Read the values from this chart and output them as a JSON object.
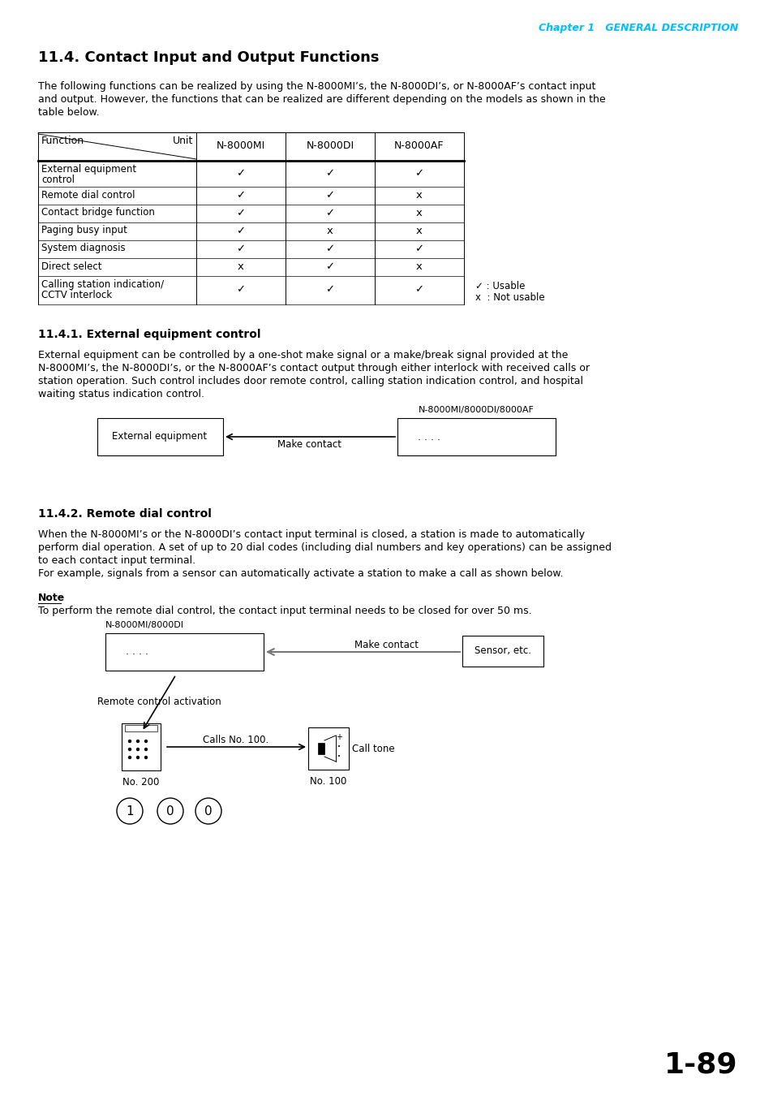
{
  "page_header": "Chapter 1   GENERAL DESCRIPTION",
  "header_color": "#00BFFF",
  "section_title": "11.4. Contact Input and Output Functions",
  "intro_text_lines": [
    "The following functions can be realized by using the N-8000MI’s, the N-8000DI’s, or N-8000AF’s contact input",
    "and output. However, the functions that can be realized are different depending on the models as shown in the",
    "table below."
  ],
  "table_rows": [
    [
      "External equipment\ncontrol",
      "✓",
      "✓",
      "✓"
    ],
    [
      "Remote dial control",
      "✓",
      "✓",
      "x"
    ],
    [
      "Contact bridge function",
      "✓",
      "✓",
      "x"
    ],
    [
      "Paging busy input",
      "✓",
      "x",
      "x"
    ],
    [
      "System diagnosis",
      "✓",
      "✓",
      "✓"
    ],
    [
      "Direct select",
      "x",
      "✓",
      "x"
    ],
    [
      "Calling station indication/\nCCTV interlock",
      "✓",
      "✓",
      "✓"
    ]
  ],
  "legend_usable": "✓ : Usable",
  "legend_not_usable": "x  : Not usable",
  "sub1_title": "11.4.1. External equipment control",
  "sub1_text_lines": [
    "External equipment can be controlled by a one-shot make signal or a make/break signal provided at the",
    "N-8000MI’s, the N-8000DI’s, or the N-8000AF’s contact output through either interlock with received calls or",
    "station operation. Such control includes door remote control, calling station indication control, and hospital",
    "waiting status indication control."
  ],
  "diagram1_ext_label": "External equipment",
  "diagram1_device_label": "N-8000MI/8000DI/8000AF",
  "diagram1_dots": ". . . .",
  "diagram1_arrow_label": "Make contact",
  "sub2_title": "11.4.2. Remote dial control",
  "sub2_text_lines": [
    "When the N-8000MI’s or the N-8000DI’s contact input terminal is closed, a station is made to automatically",
    "perform dial operation. A set of up to 20 dial codes (including dial numbers and key operations) can be assigned",
    "to each contact input terminal.",
    "For example, signals from a sensor can automatically activate a station to make a call as shown below."
  ],
  "note_title": "Note",
  "note_text": "To perform the remote dial control, the contact input terminal needs to be closed for over 50 ms.",
  "diagram2_device_label": "N-8000MI/8000DI",
  "diagram2_dots": ". . . .",
  "diagram2_sensor_label": "Sensor, etc.",
  "diagram2_make_contact": "Make contact",
  "diagram2_activation_label": "Remote control activation",
  "diagram2_calls_label": "Calls No. 100.",
  "diagram2_call_tone": "Call tone",
  "diagram2_no200": "No. 200",
  "diagram2_no100": "No. 100",
  "page_number": "1-89",
  "background_color": "#ffffff",
  "text_color": "#000000"
}
